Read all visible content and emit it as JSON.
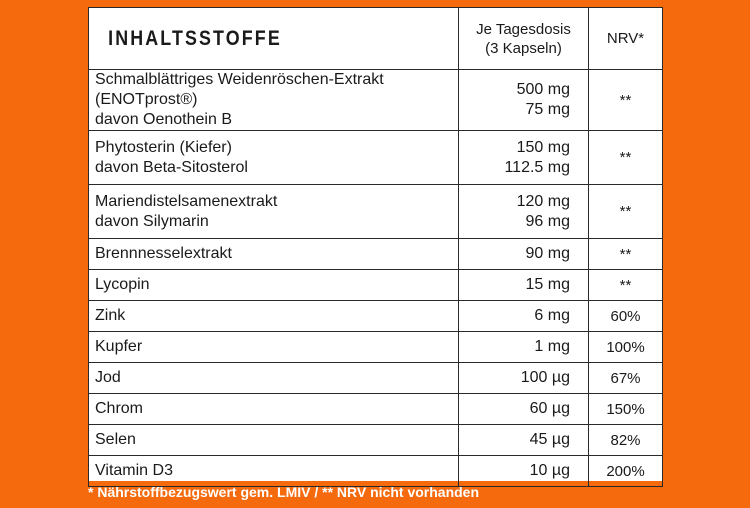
{
  "table": {
    "title": "INHALTSSTOFFE",
    "col_dose_line1": "Je Tagesdosis",
    "col_dose_line2": "(3 Kapseln)",
    "col_nrv": "NRV*",
    "rows": [
      {
        "name": "Schmalblättriges Weidenröschen-Extrakt (ENOTprost®)",
        "sub": "davon Oenothein B",
        "dose": "500 mg",
        "sub_dose": "75 mg",
        "nrv": "**"
      },
      {
        "name": "Phytosterin (Kiefer)",
        "sub": "davon Beta-Sitosterol",
        "dose": "150 mg",
        "sub_dose": "112.5 mg",
        "nrv": "**"
      },
      {
        "name": "Mariendistelsamenextrakt",
        "sub": "davon Silymarin",
        "dose": "120 mg",
        "sub_dose": "96 mg",
        "nrv": "**"
      },
      {
        "name": "Brennnesselextrakt",
        "dose": "90 mg",
        "nrv": "**"
      },
      {
        "name": "Lycopin",
        "dose": "15 mg",
        "nrv": "**"
      },
      {
        "name": "Zink",
        "dose": "6 mg",
        "nrv": "60%"
      },
      {
        "name": "Kupfer",
        "dose": "1 mg",
        "nrv": "100%"
      },
      {
        "name": "Jod",
        "dose": "100 µg",
        "nrv": "67%"
      },
      {
        "name": "Chrom",
        "dose": "60 µg",
        "nrv": "150%"
      },
      {
        "name": "Selen",
        "dose": "45 µg",
        "nrv": "82%"
      },
      {
        "name": "Vitamin D3",
        "dose": "10 µg",
        "nrv": "200%"
      }
    ]
  },
  "footnote": "* Nährstoffbezugswert gem. LMIV / ** NRV nicht vorhanden",
  "colors": {
    "background": "#f56a0c",
    "panel": "#ffffff",
    "text": "#1a1a1a"
  }
}
